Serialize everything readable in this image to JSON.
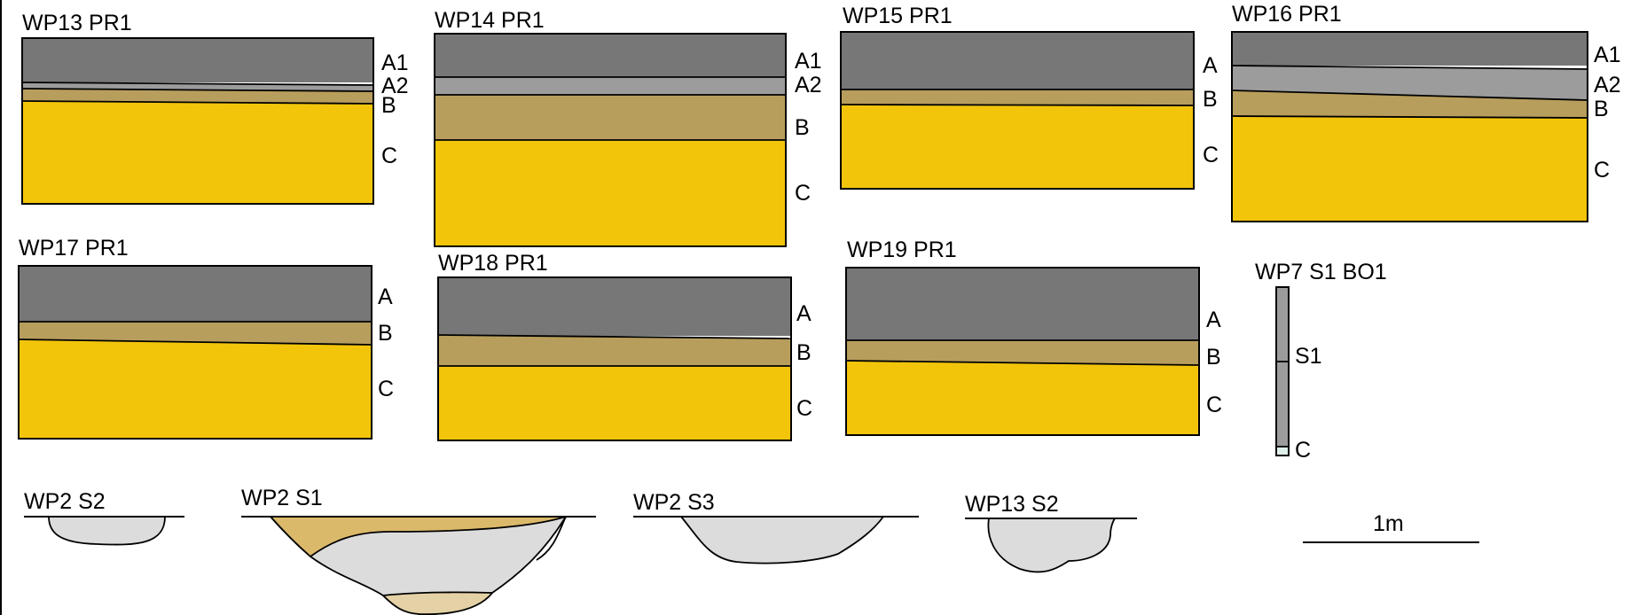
{
  "colors": {
    "topsoil_A": "#777777",
    "layer_A2": "#9c9c9c",
    "layer_B": "#b89e5c",
    "layer_C": "#f2c50b",
    "feature_fill_light": "#dcdcdc",
    "feature_fill_tan": "#dbb96a",
    "feature_fill_pale": "#e4d2a6",
    "base_C_small": "#dff0ea"
  },
  "profiles": [
    {
      "title": "WP13 PR1",
      "horizons": [
        "A1",
        "A2",
        "B",
        "C"
      ]
    },
    {
      "title": "WP14 PR1",
      "horizons": [
        "A1",
        "A2",
        "B",
        "C"
      ]
    },
    {
      "title": "WP15 PR1",
      "horizons": [
        "A",
        "B",
        "C"
      ]
    },
    {
      "title": "WP16 PR1",
      "horizons": [
        "A1",
        "A2",
        "B",
        "C"
      ]
    },
    {
      "title": "WP17 PR1",
      "horizons": [
        "A",
        "B",
        "C"
      ]
    },
    {
      "title": "WP18 PR1",
      "horizons": [
        "A",
        "B",
        "C"
      ]
    },
    {
      "title": "WP19 PR1",
      "horizons": [
        "A",
        "B",
        "C"
      ]
    },
    {
      "title": "WP7 S1 BO1",
      "horizons": [
        "S1",
        "C"
      ]
    }
  ],
  "sections": [
    {
      "title": "WP2 S2"
    },
    {
      "title": "WP2 S1"
    },
    {
      "title": "WP2 S3"
    },
    {
      "title": "WP13 S2"
    }
  ],
  "scale_bar": {
    "label": "1m"
  }
}
